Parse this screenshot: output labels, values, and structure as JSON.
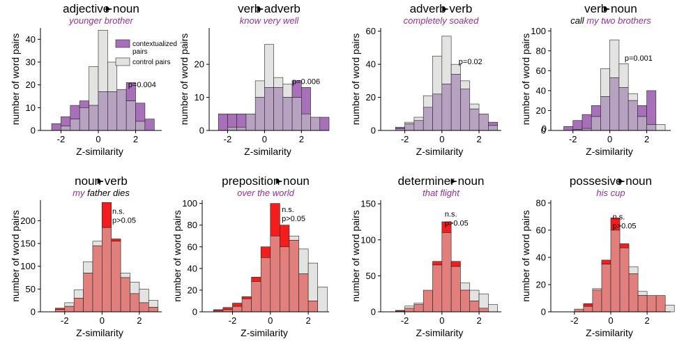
{
  "colors": {
    "purple_ctx": "#a770b8",
    "purple_overlap": "#b7a3c1",
    "red_ctx": "#f31d1d",
    "red_overlap": "#e07f7b",
    "control": "#e3e3e1",
    "pos_label": "#9b2f9b"
  },
  "chart_data": [
    {
      "type": "bar",
      "panel": "adjective-noun",
      "title_a": "adjective",
      "title_b": "noun",
      "subtitle": "younger brother",
      "xlabel": "Z-similarity",
      "ylabel": "number of word pairs",
      "xlim": [
        -3.1,
        3.4
      ],
      "ylim": [
        0,
        45
      ],
      "xticks": [
        -2,
        0,
        2
      ],
      "yticks": [
        0,
        10,
        20,
        30,
        40
      ],
      "bin_width": 0.5,
      "bins": [
        -2.5,
        -2.0,
        -1.5,
        -1.0,
        -0.5,
        0.0,
        0.5,
        1.0,
        1.5,
        2.0,
        2.5
      ],
      "contextualized": [
        3,
        6,
        11,
        13,
        11,
        17,
        17,
        18,
        21,
        12,
        5
      ],
      "control": [
        0,
        2,
        5,
        10,
        28,
        44,
        30,
        18,
        13,
        4,
        0
      ],
      "pvalue": "p=0.004",
      "pvalue_pos": [
        1.6,
        19
      ],
      "legend": [
        "contextualized pairs",
        "control pairs"
      ],
      "style": "purple"
    },
    {
      "type": "bar",
      "panel": "verb-adverb",
      "title_a": "verb",
      "title_b": "adverb",
      "subtitle": "know very well",
      "xlabel": "Z-similarity",
      "ylabel": "number of word pairs",
      "xlim": [
        -3.0,
        3.5
      ],
      "ylim": [
        0,
        31
      ],
      "xticks": [
        -2,
        0,
        2
      ],
      "yticks": [
        0,
        10,
        20
      ],
      "bin_width": 0.5,
      "bins": [
        -2.5,
        -2.0,
        -1.5,
        -1.0,
        -0.5,
        0.0,
        0.5,
        1.0,
        1.5,
        2.0,
        2.5,
        3.0
      ],
      "contextualized": [
        5,
        5,
        5,
        5,
        10,
        13,
        13,
        10,
        15,
        13,
        4,
        4
      ],
      "control": [
        0,
        1,
        1,
        5,
        15,
        26,
        16,
        14,
        10,
        5,
        4,
        0
      ],
      "pvalue": "p=0.006",
      "pvalue_pos": [
        1.5,
        14
      ],
      "style": "purple"
    },
    {
      "type": "bar",
      "panel": "adverb-verb",
      "title_a": "adverb",
      "title_b": "verb",
      "subtitle": "completely soaked",
      "xlabel": "Z-similarity",
      "ylabel": "number of word pairs",
      "xlim": [
        -3.3,
        3.2
      ],
      "ylim": [
        0,
        62
      ],
      "xticks": [
        -2,
        0,
        2
      ],
      "yticks": [
        0,
        20,
        40,
        60
      ],
      "bin_width": 0.5,
      "bins": [
        -2.5,
        -2.0,
        -1.5,
        -1.0,
        -0.5,
        0.0,
        0.5,
        1.0,
        1.5,
        2.0,
        2.5
      ],
      "contextualized": [
        2,
        4,
        6,
        14,
        22,
        28,
        34,
        25,
        13,
        10,
        5
      ],
      "control": [
        1,
        5,
        8,
        21,
        45,
        57,
        40,
        30,
        16,
        10,
        3
      ],
      "pvalue": "p=0.02",
      "pvalue_pos": [
        0.9,
        40
      ],
      "style": "purple"
    },
    {
      "type": "bar",
      "panel": "verb-noun",
      "title_a": "verb",
      "title_b": "noun",
      "subtitle_plain": "call",
      "subtitle_mid": " my two ",
      "subtitle_end": "brothers",
      "xlabel": "Z-similarity",
      "ylabel": "number of word pairs",
      "xlim": [
        -3.2,
        3.3
      ],
      "ylim": [
        0,
        103
      ],
      "xticks": [
        -2,
        0,
        2
      ],
      "yticks": [
        0,
        20,
        40,
        60,
        80,
        100
      ],
      "bin_width": 0.5,
      "bins": [
        -2.5,
        -2.0,
        -1.5,
        -1.0,
        -0.5,
        0.0,
        0.5,
        1.0,
        1.5,
        2.0,
        2.5
      ],
      "contextualized": [
        4,
        10,
        16,
        25,
        34,
        53,
        43,
        30,
        25,
        40,
        0
      ],
      "control": [
        0,
        1,
        2,
        14,
        62,
        91,
        67,
        37,
        14,
        6,
        6
      ],
      "pvalue": "p=0.001",
      "pvalue_pos": [
        0.8,
        70
      ],
      "extra_ytick": "0",
      "style": "purple"
    },
    {
      "type": "bar",
      "panel": "noun-verb",
      "title_a": "noun",
      "title_b": "verb",
      "subtitle": "my ",
      "subtitle_end": "father dies",
      "xlabel": "Z-similarity",
      "ylabel": "number of word pairs",
      "xlim": [
        -3.3,
        3.2
      ],
      "ylim": [
        0,
        245
      ],
      "xticks": [
        -2,
        0,
        2
      ],
      "yticks": [
        0,
        50,
        100,
        150,
        200
      ],
      "bin_width": 0.5,
      "bins": [
        -2.5,
        -2.0,
        -1.5,
        -1.0,
        -0.5,
        0.0,
        0.5,
        1.0,
        1.5,
        2.0,
        2.5
      ],
      "contextualized": [
        8,
        12,
        30,
        85,
        145,
        240,
        160,
        75,
        40,
        20,
        10
      ],
      "control": [
        5,
        20,
        48,
        110,
        155,
        185,
        155,
        85,
        65,
        50,
        25
      ],
      "pvalue": "n.s.\np>0.05",
      "pvalue_pos": [
        0.55,
        215
      ],
      "style": "red"
    },
    {
      "type": "bar",
      "panel": "preposition-noun",
      "title_a": "preposition",
      "title_b": "noun",
      "subtitle": "over the world",
      "xlabel": "Z-similarity",
      "ylabel": "number of word pairs",
      "xlim": [
        -3.6,
        3.1
      ],
      "ylim": [
        0,
        103
      ],
      "xticks": [
        -2,
        0,
        2
      ],
      "yticks": [
        0,
        20,
        40,
        60,
        80,
        100
      ],
      "bin_width": 0.5,
      "bins": [
        -3.0,
        -2.5,
        -2.0,
        -1.5,
        -1.0,
        -0.5,
        0.0,
        0.5,
        1.0,
        1.5,
        2.0,
        2.5
      ],
      "contextualized": [
        2,
        4,
        8,
        14,
        32,
        60,
        100,
        80,
        66,
        35,
        10,
        0
      ],
      "control": [
        1,
        2,
        5,
        12,
        28,
        50,
        70,
        60,
        70,
        58,
        45,
        23
      ],
      "pvalue": "n.s.\np>0.05",
      "pvalue_pos": [
        0.6,
        92
      ],
      "style": "red"
    },
    {
      "type": "bar",
      "panel": "determiner-noun",
      "title_a": "determiner",
      "title_b": "noun",
      "subtitle": "that flight",
      "xlabel": "Z-similarity",
      "ylabel": "number of word pairs",
      "xlim": [
        -3.3,
        3.2
      ],
      "ylim": [
        0,
        155
      ],
      "xticks": [
        -2,
        0,
        2
      ],
      "yticks": [
        0,
        50,
        100,
        150
      ],
      "bin_width": 0.5,
      "bins": [
        -2.5,
        -2.0,
        -1.5,
        -1.0,
        -0.5,
        0.0,
        0.5,
        1.0,
        1.5,
        2.0,
        2.5
      ],
      "contextualized": [
        2,
        5,
        10,
        30,
        70,
        125,
        70,
        30,
        15,
        5,
        0
      ],
      "control": [
        1,
        8,
        12,
        30,
        65,
        110,
        63,
        40,
        30,
        25,
        10
      ],
      "pvalue": "n.s.\np>0.05",
      "pvalue_pos": [
        0.15,
        132
      ],
      "style": "red"
    },
    {
      "type": "bar",
      "panel": "possesive-noun",
      "title_a": "possesive",
      "title_b": "noun",
      "subtitle": "his cup",
      "xlabel": "Z-similarity",
      "ylabel": "number of word pairs",
      "xlim": [
        -3.3,
        3.3
      ],
      "ylim": [
        0,
        82
      ],
      "xticks": [
        -2,
        0,
        2
      ],
      "yticks": [
        0,
        20,
        40,
        60,
        80
      ],
      "bin_width": 0.5,
      "bins": [
        -2.5,
        -2.0,
        -1.5,
        -1.0,
        -0.5,
        0.0,
        0.5,
        1.0,
        1.5,
        2.0,
        2.5,
        3.0
      ],
      "contextualized": [
        0,
        2,
        6,
        16,
        38,
        69,
        50,
        28,
        12,
        12,
        12,
        0
      ],
      "control": [
        0,
        2,
        4,
        17,
        35,
        60,
        47,
        33,
        15,
        12,
        12,
        5
      ],
      "pvalue": "n.s.\np>0.05",
      "pvalue_pos": [
        0.1,
        68
      ],
      "style": "red"
    }
  ]
}
